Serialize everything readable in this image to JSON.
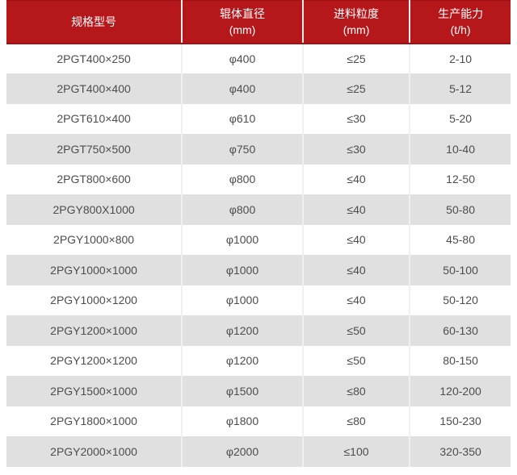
{
  "table": {
    "columns": [
      {
        "label": "规格型号",
        "unit": ""
      },
      {
        "label": "辊体直径",
        "unit": "(mm)"
      },
      {
        "label": "进料粒度",
        "unit": "(mm)"
      },
      {
        "label": "生产能力",
        "unit": "(t/h)"
      }
    ],
    "rows": [
      [
        "2PGT400×250",
        "φ400",
        "≤25",
        "2-10"
      ],
      [
        "2PGT400×400",
        "φ400",
        "≤25",
        "5-12"
      ],
      [
        "2PGT610×400",
        "φ610",
        "≤30",
        "5-20"
      ],
      [
        "2PGT750×500",
        "φ750",
        "≤30",
        "10-40"
      ],
      [
        "2PGT800×600",
        "φ800",
        "≤40",
        "12-50"
      ],
      [
        "2PGY800X1000",
        "φ800",
        "≤40",
        "50-80"
      ],
      [
        "2PGY1000×800",
        "φ1000",
        "≤40",
        "45-80"
      ],
      [
        "2PGY1000×1000",
        "φ1000",
        "≤40",
        "50-100"
      ],
      [
        "2PGY1000×1200",
        "φ1000",
        "≤40",
        "50-120"
      ],
      [
        "2PGY1200×1000",
        "φ1200",
        "≤50",
        "60-130"
      ],
      [
        "2PGY1200×1200",
        "φ1200",
        "≤50",
        "80-150"
      ],
      [
        "2PGY1500×1000",
        "φ1500",
        "≤80",
        "120-200"
      ],
      [
        "2PGY1800×1000",
        "φ1800",
        "≤80",
        "150-230"
      ],
      [
        "2PGY2000×1000",
        "φ2000",
        "≤100",
        "320-350"
      ]
    ],
    "colors": {
      "header_bg": "#b5171b",
      "header_edge": "#9c1216",
      "header_text": "#ffffff",
      "row_bg": "#ffffff",
      "row_alt_bg": "#e0e0e0",
      "cell_text": "#4d4d4d",
      "grid_line": "#f0f0f0"
    }
  }
}
